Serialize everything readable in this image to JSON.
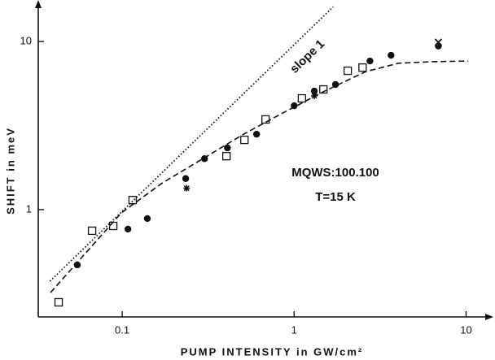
{
  "chart_data": {
    "type": "scatter",
    "log_x": true,
    "log_y": true,
    "xlabel": "PUMP INTENSITY  in  GW/cm²",
    "ylabel": "SHIFT  in  meV",
    "annotations": [
      "slope 1",
      "MQWS:100.100",
      "T=15 K"
    ],
    "xlim": [
      0.0325,
      13.5
    ],
    "ylim": [
      0.23,
      15.8
    ],
    "xticks": [
      0.1,
      1,
      10
    ],
    "yticks": [
      1,
      10
    ],
    "series": [
      {
        "marker": "circle",
        "color": "#111",
        "x": [
          0.0548,
          0.108,
          0.14,
          0.234,
          0.301,
          0.409,
          0.605,
          1.0,
          1.31,
          1.74,
          2.76,
          3.66,
          6.9
        ],
        "values": [
          0.469,
          0.766,
          0.885,
          1.53,
          2.01,
          2.33,
          2.81,
          4.15,
          5.07,
          5.55,
          7.66,
          8.28,
          9.4
        ]
      },
      {
        "marker": "square",
        "color": "#111",
        "x": [
          0.0427,
          0.0668,
          0.0887,
          0.115,
          0.404,
          0.514,
          0.682,
          1.11,
          1.48,
          2.05,
          2.5
        ],
        "values": [
          0.281,
          0.749,
          0.8,
          1.14,
          2.08,
          2.6,
          3.44,
          4.59,
          5.19,
          6.7,
          7.0
        ]
      },
      {
        "marker": "star",
        "color": "#111",
        "x": [
          0.237,
          1.31
        ],
        "values": [
          1.34,
          4.75
        ]
      },
      {
        "marker": "cross",
        "color": "#111",
        "x": [
          6.9
        ],
        "values": [
          9.9
        ]
      },
      {
        "marker": "none",
        "line": "dotted",
        "color": "#111",
        "x": [
          0.038,
          1.69
        ],
        "values": [
          0.375,
          16.1
        ]
      },
      {
        "marker": "none",
        "line": "dashed",
        "color": "#111",
        "x": [
          0.0383,
          0.0988,
          0.171,
          0.295,
          0.508,
          0.877,
          1.51,
          2.61,
          4.04,
          6.25,
          10.3
        ],
        "values": [
          0.321,
          0.956,
          1.44,
          2.01,
          2.81,
          3.8,
          5.08,
          6.62,
          7.43,
          7.58,
          7.66
        ]
      }
    ]
  }
}
